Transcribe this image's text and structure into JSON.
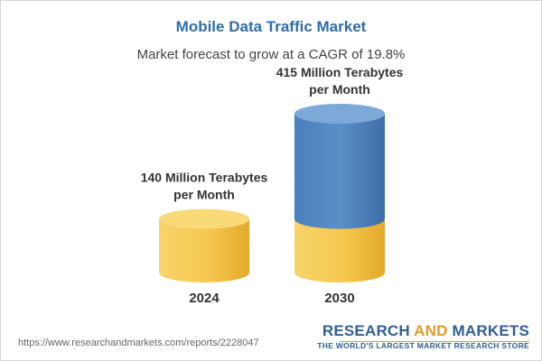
{
  "header": {
    "title": "Mobile Data Traffic Market",
    "subtitle": "Market forecast to grow at a CAGR of 19.8%"
  },
  "chart_data": {
    "type": "bar",
    "title": "Mobile Data Traffic Market",
    "subtitle": "Market forecast to grow at a CAGR of 19.8%",
    "categories": [
      "2024",
      "2030"
    ],
    "values": [
      140,
      415
    ],
    "unit": "Million Terabytes per Month",
    "data_labels": [
      [
        "140 Million Terabytes",
        "per Month"
      ],
      [
        "415 Million Terabytes",
        "per Month"
      ]
    ],
    "colors": {
      "base": "#f4c653",
      "growth": "#4f86bf",
      "label": "#333333"
    },
    "legend": "none",
    "grid": false
  },
  "footer": {
    "url": "https://www.researchandmarkets.com/reports/2228047",
    "brand_part1": "RESEARCH ",
    "brand_part2": "AND",
    "brand_part3": " MARKETS",
    "tagline": "THE WORLD'S LARGEST MARKET RESEARCH STORE"
  }
}
